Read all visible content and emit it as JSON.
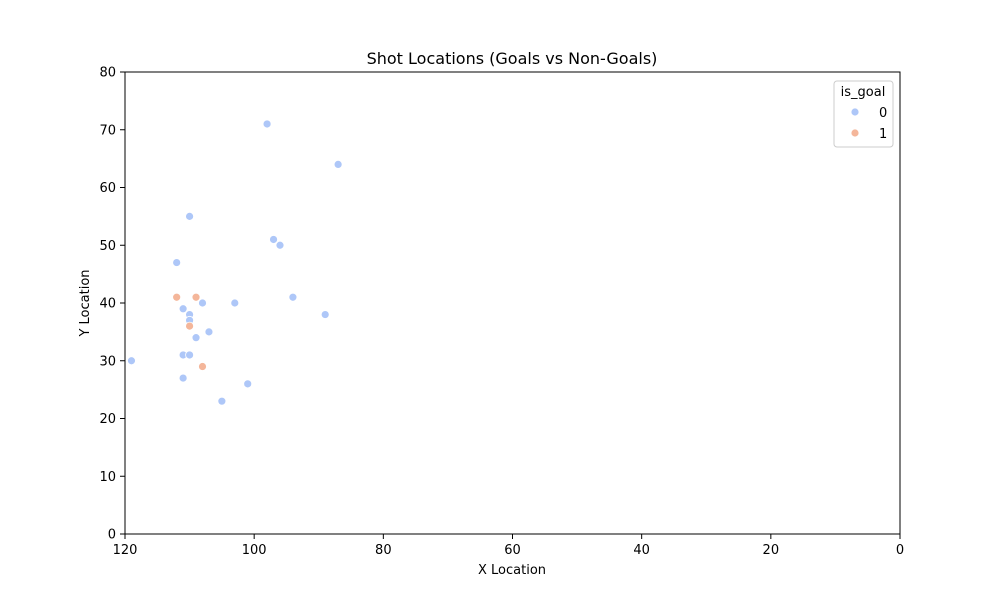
{
  "chart_data": {
    "type": "scatter",
    "title": "Shot Locations (Goals vs Non-Goals)",
    "xlabel": "X Location",
    "ylabel": "Y Location",
    "xlim": [
      120,
      0
    ],
    "ylim": [
      0,
      80
    ],
    "x_ticks": [
      120,
      100,
      80,
      60,
      40,
      20,
      0
    ],
    "y_ticks": [
      0,
      10,
      20,
      30,
      40,
      50,
      60,
      70,
      80
    ],
    "grid": false,
    "legend": {
      "title": "is_goal",
      "placement": "top-right",
      "entries": [
        {
          "label": "0",
          "color": "#aec7f8"
        },
        {
          "label": "1",
          "color": "#f4b69a"
        }
      ]
    },
    "series": [
      {
        "name": "0",
        "color": "#aec7f8",
        "points": [
          [
            98,
            71
          ],
          [
            87,
            64
          ],
          [
            110,
            55
          ],
          [
            97,
            51
          ],
          [
            96,
            50
          ],
          [
            112,
            47
          ],
          [
            94,
            41
          ],
          [
            108,
            40
          ],
          [
            103,
            40
          ],
          [
            111,
            39
          ],
          [
            110,
            38
          ],
          [
            89,
            38
          ],
          [
            110,
            37
          ],
          [
            107,
            35
          ],
          [
            109,
            34
          ],
          [
            111,
            31
          ],
          [
            110,
            31
          ],
          [
            119,
            30
          ],
          [
            111,
            27
          ],
          [
            101,
            26
          ],
          [
            105,
            23
          ]
        ]
      },
      {
        "name": "1",
        "color": "#f4b69a",
        "points": [
          [
            112,
            41
          ],
          [
            109,
            41
          ],
          [
            110,
            36
          ],
          [
            108,
            29
          ]
        ]
      }
    ]
  }
}
